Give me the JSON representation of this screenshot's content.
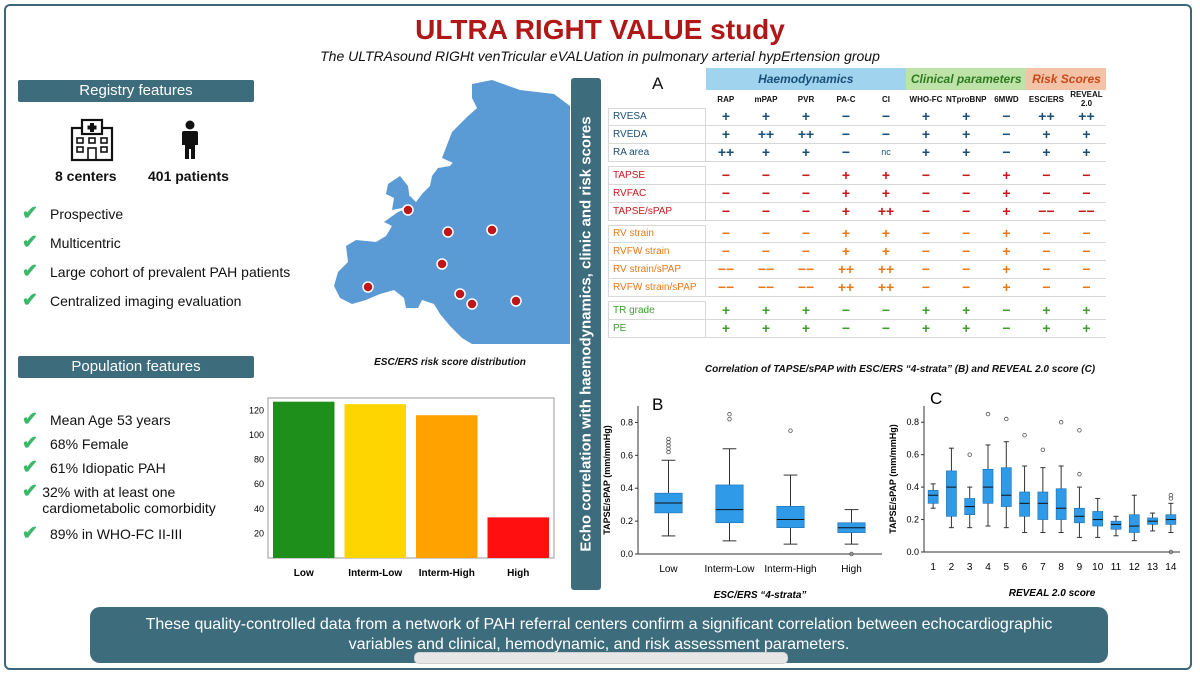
{
  "title": "ULTRA RIGHT VALUE study",
  "subtitle": "The ULTRAsound RIGHt venTricular eVALUation in pulmonary arterial hypErtension group",
  "registry": {
    "header": "Registry features",
    "centers": "8 centers",
    "patients": "401 patients",
    "items": [
      "Prospective",
      "Multicentric",
      "Large cohort of prevalent PAH patients",
      "Centralized imaging evaluation"
    ]
  },
  "population": {
    "header": "Population features",
    "items": [
      "Mean Age 53 years",
      "68% Female",
      "61% Idiopatic PAH",
      "32% with at least one cardiometabolic  comorbidity",
      "89% in WHO-FC II-III"
    ]
  },
  "vertical_label": "Echo correlation with  haemodynamics, clinic and risk scores",
  "table": {
    "panel": "A",
    "groups": [
      {
        "label": "Haemodynamics",
        "color": "#9fd3ee",
        "text_color": "#1a4f7a",
        "span": 5
      },
      {
        "label": "Clinical parameters",
        "color": "#bde3a8",
        "text_color": "#2e7a1f",
        "span": 3
      },
      {
        "label": "Risk Scores",
        "color": "#f4c2a6",
        "text_color": "#c94a1a",
        "span": 2
      }
    ],
    "columns": [
      "RAP",
      "mPAP",
      "PVR",
      "PA-C",
      "CI",
      "WHO-FC",
      "NTproBNP",
      "6MWD",
      "ESC/ERS",
      "REVEAL 2.0"
    ],
    "sections": [
      {
        "color": "blue",
        "rows": [
          {
            "label": "RVESA",
            "values": [
              "+",
              "+",
              "+",
              "−",
              "−",
              "+",
              "+",
              "−",
              "++",
              "++"
            ]
          },
          {
            "label": "RVEDA",
            "values": [
              "+",
              "++",
              "++",
              "−",
              "−",
              "+",
              "+",
              "−",
              "+",
              "+"
            ]
          },
          {
            "label": "RA area",
            "values": [
              "++",
              "+",
              "+",
              "−",
              "nc",
              "+",
              "+",
              "−",
              "+",
              "+"
            ]
          }
        ]
      },
      {
        "color": "red",
        "rows": [
          {
            "label": "TAPSE",
            "values": [
              "−",
              "−",
              "−",
              "+",
              "+",
              "−",
              "−",
              "+",
              "−",
              "−"
            ]
          },
          {
            "label": "RVFAC",
            "values": [
              "−",
              "−",
              "−",
              "+",
              "+",
              "−",
              "−",
              "+",
              "−",
              "−"
            ]
          },
          {
            "label": "TAPSE/sPAP",
            "values": [
              "−",
              "−",
              "−",
              "+",
              "++",
              "−",
              "−",
              "+",
              "−−",
              "−−"
            ]
          }
        ]
      },
      {
        "color": "orange",
        "rows": [
          {
            "label": "RV strain",
            "values": [
              "−",
              "−",
              "−",
              "+",
              "+",
              "−",
              "−",
              "+",
              "−",
              "−"
            ]
          },
          {
            "label": "RVFW strain",
            "values": [
              "−",
              "−",
              "−",
              "+",
              "+",
              "−",
              "−",
              "+",
              "−",
              "−"
            ]
          },
          {
            "label": "RV strain/sPAP",
            "values": [
              "−−",
              "−−",
              "−−",
              "++",
              "++",
              "−",
              "−",
              "+",
              "−",
              "−"
            ]
          },
          {
            "label": "RVFW strain/sPAP",
            "values": [
              "−−",
              "−−",
              "−−",
              "++",
              "++",
              "−",
              "−",
              "+",
              "−",
              "−"
            ]
          }
        ]
      },
      {
        "color": "green",
        "rows": [
          {
            "label": "TR grade",
            "values": [
              "+",
              "+",
              "+",
              "−",
              "−",
              "+",
              "+",
              "−",
              "+",
              "+"
            ]
          },
          {
            "label": "PE",
            "values": [
              "+",
              "+",
              "+",
              "−",
              "−",
              "+",
              "+",
              "−",
              "+",
              "+"
            ]
          }
        ]
      }
    ]
  },
  "map_caption": "ESC/ERS risk score distribution",
  "boxplot_caption": "Correlation of TAPSE/sPAP with ESC/ERS “4-strata” (B)  and REVEAL 2.0 score (C)",
  "chart_data": [
    {
      "type": "bar",
      "title": "ESC/ERS risk score distribution",
      "categories": [
        "Low",
        "Interm-Low",
        "Interm-High",
        "High"
      ],
      "values": [
        127,
        125,
        116,
        33
      ],
      "colors": [
        "#1e8f1a",
        "#ffd500",
        "#ffa200",
        "#ff0f0f"
      ],
      "yticks": [
        20,
        40,
        60,
        80,
        100,
        120
      ],
      "ylim": [
        0,
        130
      ]
    },
    {
      "type": "box",
      "panel": "B",
      "xlabel": "ESC/ERS “4-strata”",
      "ylabel": "TAPSE/sPAP (mm/mmHg)",
      "ylim": [
        0,
        0.9
      ],
      "yticks": [
        "0.0",
        "0.2",
        "0.4",
        "0.6",
        "0.8"
      ],
      "categories": [
        "Low",
        "Interm-Low",
        "Interm-High",
        "High"
      ],
      "boxes": [
        {
          "min": 0.11,
          "q1": 0.25,
          "median": 0.31,
          "q3": 0.37,
          "max": 0.57,
          "outliers": [
            0.62,
            0.64,
            0.66,
            0.68,
            0.7
          ]
        },
        {
          "min": 0.08,
          "q1": 0.19,
          "median": 0.27,
          "q3": 0.42,
          "max": 0.64,
          "outliers": [
            0.82,
            0.85
          ]
        },
        {
          "min": 0.06,
          "q1": 0.16,
          "median": 0.21,
          "q3": 0.29,
          "max": 0.48,
          "outliers": [
            0.75
          ]
        },
        {
          "min": 0.06,
          "q1": 0.13,
          "median": 0.16,
          "q3": 0.19,
          "max": 0.27,
          "outliers": [
            0.0
          ]
        }
      ]
    },
    {
      "type": "box",
      "panel": "C",
      "xlabel": "REVEAL 2.0 score",
      "ylabel": "TAPSE/sPAP (mm/mmHg)",
      "ylim": [
        0,
        0.9
      ],
      "yticks": [
        "0.0",
        "0.2",
        "0.4",
        "0.6",
        "0.8"
      ],
      "categories": [
        "1",
        "2",
        "3",
        "4",
        "5",
        "6",
        "7",
        "8",
        "9",
        "10",
        "11",
        "12",
        "13",
        "14"
      ],
      "boxes": [
        {
          "min": 0.27,
          "q1": 0.3,
          "median": 0.35,
          "q3": 0.38,
          "max": 0.42,
          "outliers": []
        },
        {
          "min": 0.15,
          "q1": 0.22,
          "median": 0.4,
          "q3": 0.5,
          "max": 0.64,
          "outliers": []
        },
        {
          "min": 0.15,
          "q1": 0.23,
          "median": 0.28,
          "q3": 0.33,
          "max": 0.4,
          "outliers": [
            0.6
          ]
        },
        {
          "min": 0.16,
          "q1": 0.3,
          "median": 0.4,
          "q3": 0.51,
          "max": 0.66,
          "outliers": [
            0.85
          ]
        },
        {
          "min": 0.15,
          "q1": 0.28,
          "median": 0.35,
          "q3": 0.52,
          "max": 0.68,
          "outliers": [
            0.82
          ]
        },
        {
          "min": 0.12,
          "q1": 0.22,
          "median": 0.3,
          "q3": 0.37,
          "max": 0.53,
          "outliers": [
            0.72
          ]
        },
        {
          "min": 0.12,
          "q1": 0.2,
          "median": 0.3,
          "q3": 0.37,
          "max": 0.52,
          "outliers": [
            0.63
          ]
        },
        {
          "min": 0.12,
          "q1": 0.2,
          "median": 0.27,
          "q3": 0.39,
          "max": 0.53,
          "outliers": [
            0.8
          ]
        },
        {
          "min": 0.09,
          "q1": 0.18,
          "median": 0.22,
          "q3": 0.27,
          "max": 0.4,
          "outliers": [
            0.48,
            0.75
          ]
        },
        {
          "min": 0.09,
          "q1": 0.16,
          "median": 0.2,
          "q3": 0.25,
          "max": 0.33,
          "outliers": []
        },
        {
          "min": 0.1,
          "q1": 0.14,
          "median": 0.17,
          "q3": 0.19,
          "max": 0.22,
          "outliers": []
        },
        {
          "min": 0.07,
          "q1": 0.12,
          "median": 0.16,
          "q3": 0.23,
          "max": 0.35,
          "outliers": []
        },
        {
          "min": 0.13,
          "q1": 0.17,
          "median": 0.19,
          "q3": 0.21,
          "max": 0.24,
          "outliers": []
        },
        {
          "min": 0.12,
          "q1": 0.17,
          "median": 0.2,
          "q3": 0.23,
          "max": 0.3,
          "outliers": [
            0.0,
            0.33,
            0.35
          ]
        }
      ]
    }
  ],
  "conclusion": "These quality-controlled data from a network of PAH referral centers confirm a significant correlation between echocardiographic variables and clinical, hemodynamic, and risk assessment parameters.",
  "colors": {
    "accent": "#3d6c7d",
    "title": "#b01818",
    "check": "#3cb86b",
    "box": "#2e9ae8"
  }
}
